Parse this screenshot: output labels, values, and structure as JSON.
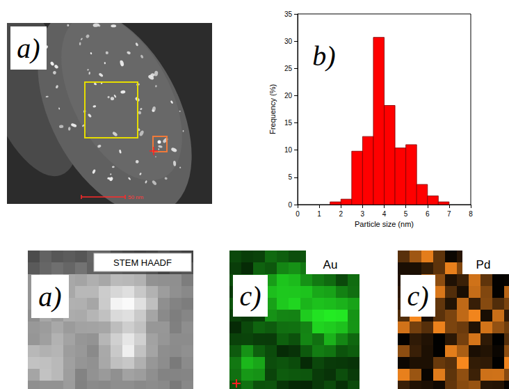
{
  "panels": [
    {
      "label": "a)",
      "scale_bar": "50 nm"
    },
    {
      "label": "b)"
    },
    {
      "label": "a)",
      "title": "STEM HAADF"
    },
    {
      "label": "c)",
      "title": "Au"
    },
    {
      "label": "c)",
      "title": "Pd"
    }
  ],
  "chart_data": {
    "type": "histogram",
    "x_label": "Particle size (nm)",
    "y_label": "Frequency (%)",
    "bins": [
      1.5,
      2.0,
      2.5,
      3.0,
      3.5,
      4.0,
      4.5,
      5.0,
      5.5,
      6.0,
      6.5,
      7.0
    ],
    "values": [
      0.5,
      1.0,
      9.8,
      12.5,
      30.7,
      18.2,
      10.4,
      11.0,
      3.7,
      1.6,
      0.5
    ],
    "color": "#ff0000",
    "xlim": [
      0,
      8
    ],
    "xticks": [
      0,
      1,
      2,
      3,
      4,
      5,
      6,
      7,
      8
    ],
    "ylim": [
      0,
      35
    ],
    "yticks": [
      0,
      5,
      10,
      15,
      20,
      25,
      30,
      35
    ],
    "grid": false
  }
}
